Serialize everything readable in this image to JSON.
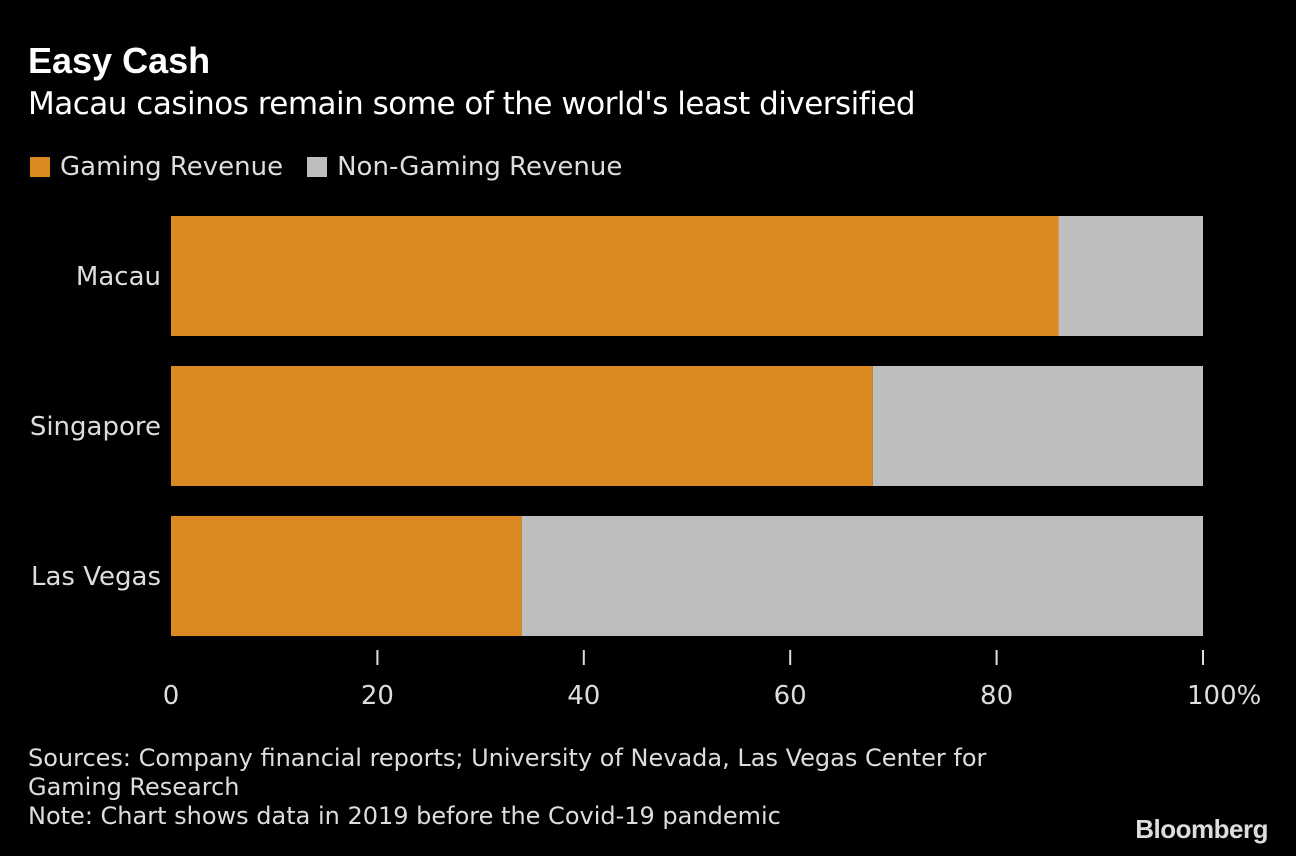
{
  "title": "Easy Cash",
  "subtitle": "Macau casinos remain some of the world's least diversified",
  "footer": {
    "sources": "Sources: Company financial reports; University of Nevada, Las Vegas Center for Gaming Research",
    "note": "Note: Chart shows data in 2019 before the Covid-19 pandemic"
  },
  "logo": "Bloomberg",
  "chart_data": {
    "type": "bar",
    "orientation": "horizontal",
    "stacked": true,
    "categories": [
      "Macau",
      "Singapore",
      "Las Vegas"
    ],
    "series": [
      {
        "name": "Gaming Revenue",
        "color": "#db8a23",
        "values": [
          86,
          68,
          34
        ]
      },
      {
        "name": "Non-Gaming Revenue",
        "color": "#bebebe",
        "values": [
          14,
          32,
          66
        ]
      }
    ],
    "xlim": [
      0,
      100
    ],
    "x_ticks": [
      "0",
      "20",
      "40",
      "60",
      "80",
      "100%"
    ],
    "legend": "top-left",
    "grid": false
  }
}
